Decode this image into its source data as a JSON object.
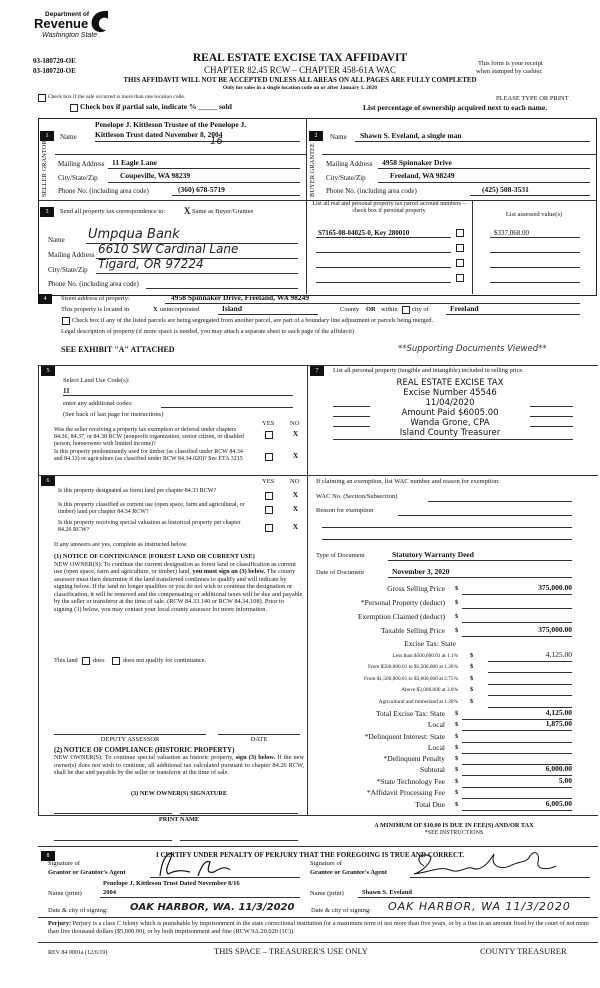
{
  "header": {
    "logo_text": [
      "Department of",
      "Revenue",
      "Washington State"
    ],
    "form_ids": [
      "03-180720-OE",
      "03-180720-OE"
    ],
    "title": "REAL ESTATE EXCISE TAX AFFIDAVIT",
    "subtitle": "CHAPTER 82.45 RCW – CHAPTER 458-61A WAC",
    "warning": "THIS AFFIDAVIT WILL NOT BE ACCEPTED UNLESS ALL AREAS ON ALL PAGES ARE FULLY COMPLETED",
    "only_for": "Only for sales in a single location code on or after January 1, 2020",
    "receipt_note": [
      "This form is your receipt",
      "when stamped by cashier."
    ],
    "multi_location": "Check box if the sale occurred is more than one location code.",
    "partial_sale": "Check box if partial sale, indicate % _____ sold",
    "type_or_print": "PLEASE TYPE OR PRINT",
    "ownership_note": "List percentage of ownership acquired next to each name."
  },
  "seller": {
    "num": "1",
    "side_label": "SELLER GRANTOR",
    "name_label": "Name",
    "name": [
      "Penelope J. Kittleson Trustee of the Penelope J.",
      "Kittleson Trust dated November 8, 2004"
    ],
    "name_hand": "16",
    "mailing_label": "Mailing Address",
    "mailing": "11 Eagle Lane",
    "city_label": "City/State/Zip",
    "city": "Coupeville, WA 98239",
    "phone_label": "Phone No. (including area code)",
    "phone": "(360) 678-5719"
  },
  "buyer": {
    "num": "2",
    "side_label": "BUYER GRANTEE",
    "name_label": "Name",
    "name": "Shawn S. Eveland, a single man",
    "mailing_label": "Mailing Address",
    "mailing": "4958 Spinnaker Drive",
    "city_label": "City/State/Zip",
    "city": "Freeland, WA 98249",
    "phone_label": "Phone No. (including area code)",
    "phone": "(425) 508-3531"
  },
  "correspondence": {
    "num": "3",
    "label": "Send all property tax correspondence to:",
    "same_as": "Same as Buyer/Grantee",
    "same_as_mark": "X",
    "name_label": "Name",
    "name": "Umpqua Bank",
    "mailing_label": "Mailing Address",
    "mailing": "6610 SW Cardinal Lane",
    "city_label": "City/State/Zip",
    "city": "Tigard, OR 97224",
    "phone_label": "Phone No. (including area code)"
  },
  "parcels": {
    "header": "List all real and personal property tax parcel account numbers – check box if personal property",
    "value_header": "List assessed value(s)",
    "rows": [
      {
        "account": "S7165-08-04025-0, Key 280010",
        "value": "$337,068.00"
      },
      {
        "account": "",
        "value": ""
      },
      {
        "account": "",
        "value": ""
      },
      {
        "account": "",
        "value": ""
      }
    ]
  },
  "property": {
    "num": "4",
    "street_label": "Street address of property:",
    "street": "4958 Spinnaker Drive, Freeland, WA  98249",
    "located_label": "This property is located in",
    "located_mark": "X",
    "unincorporated": "unincorporated",
    "county": "Island",
    "county_label": "County",
    "or": "OR",
    "within": "within",
    "city_of": "city of",
    "city": "Freeland",
    "segregated": "Check box if any of the listed parcels are being segregated from another parcel, are part of a boundary line adjustment or parcels being merged.",
    "legal_label": "Legal description of property (if more space is needed, you may attach a separate sheet to each page of the affidavit)",
    "legal": "SEE EXHIBIT \"A\" ATTACHED",
    "supporting": "**Supporting Documents Viewed**"
  },
  "section5": {
    "num": "5",
    "land_use_label": "Select Land Use Code(s):",
    "land_use": "11",
    "additional": "enter any additional codes:",
    "see_back": "(See back of last page for instructions)",
    "yes": "YES",
    "no": "NO",
    "questions": [
      {
        "text": "Was the seller receiving a property tax exemption or deferral under chapters 84.36, 84.37, or 84.38 RCW (nonprofit organization, senior citizen, or disabled person, homeowner with limited income)?",
        "answer": "X"
      },
      {
        "text": "Is this property predominantly used for timber (as classified under RCW 84.34 and 84.33) or agriculture (as classified under RCW 84.34.020)? See ETA 3215",
        "answer": "X"
      }
    ]
  },
  "section6": {
    "num": "6",
    "yes": "YES",
    "no": "NO",
    "questions": [
      {
        "text": "Is this property designated as forest land per chapter 84.33 RCW?",
        "answer": "X"
      },
      {
        "text": "Is this property classified as current use (open space, farm and agricultural, or timber) land per chapter 84.34 RCW?",
        "answer": "X"
      },
      {
        "text": "Is this property receiving special valuation as historical property per chapter 84.26 RCW?",
        "answer": "X"
      }
    ],
    "if_yes": "If any answers are yes, complete as instructed below.",
    "notice1_title": "(1) NOTICE OF CONTINUANCE (FOREST LAND OR CURRENT USE)",
    "notice1_text_a": "NEW OWNER(S): To continue the current designation as forest land or classification as current use (open space, farm and agriculture, or timber) land,",
    "notice1_bold": "you must sign on (3) below.",
    "notice1_text_b": "The county assessor must then determine if the land transferred continues to qualify and will indicate by signing below. If the land no longer qualifies or you do not wish to continue the designation or classification, it will be removed and the compensating or additional taxes will be due and payable by the seller or transferor at the time of sale. (RCW 84.33.140 or RCW 84.34.108). Prior to signing (3) below, you may contact your local county assessor for more information.",
    "this_land": "This land",
    "does": "does",
    "does_not": "does not qualify for continuance.",
    "deputy": "DEPUTY ASSESSOR",
    "date": "DATE",
    "notice2_title": "(2) NOTICE OF COMPLIANCE (HISTORIC PROPERTY)",
    "notice2_text_a": "NEW OWNER(S): To continue special valuation as historic property,",
    "notice2_bold": "sign (3) below.",
    "notice2_text_b": "If the new owner(s) does not wish to continue, all additional tax calculated pursuant to chapter 84.26 RCW, shall be due and payable by the seller or transferor at the time of sale.",
    "signature_title": "(3) NEW OWNER(S) SIGNATURE",
    "print_name": "PRINT NAME"
  },
  "section7": {
    "num": "7",
    "label": "List all personal property (tangible and intangible) included in selling price.",
    "stamp": [
      "REAL ESTATE EXCISE TAX",
      "Excise Number 45546",
      "11/04/2020",
      "Amount Paid $6005.00",
      "Wanda Grone, CPA",
      "Island County Treasurer"
    ]
  },
  "exemption": {
    "label": "If claiming an exemption, list WAC number and reason for exemption:",
    "wac_label": "WAC No. (Section/Subsection)",
    "reason_label": "Reason for exemption"
  },
  "document": {
    "type_label": "Type of Document",
    "type": "Statutory Warranty Deed",
    "date_label": "Date of Document",
    "date": "November 3, 2020"
  },
  "tax": {
    "rows": [
      {
        "label": "Gross Selling Price",
        "value": "375,000.00",
        "bold": true
      },
      {
        "label": "*Personal Property (deduct)",
        "value": ""
      },
      {
        "label": "Exemption Claimed (deduct)",
        "value": ""
      },
      {
        "label": "Taxable Selling Price",
        "value": "375,000.00",
        "bold": true
      },
      {
        "label": "Excise Tax:  State",
        "heading": true
      },
      {
        "label": "Less than $500,000.01 at 1.1%",
        "value": "4,125.00",
        "small": true
      },
      {
        "label": "From $500,000.01 to $1,500,000 at 1.28%",
        "value": "",
        "small": true
      },
      {
        "label": "From $1,500,000.01 to $3,000,000 at 2.75%",
        "value": "",
        "small": true
      },
      {
        "label": "Above $3,000,000 at 3.0%",
        "value": "",
        "small": true
      },
      {
        "label": "Agricultural and timberland at 1.28%",
        "value": "",
        "small": true
      },
      {
        "label": "Total Excise Tax: State",
        "value": "4,125.00",
        "bold": true
      },
      {
        "label": "Local",
        "value": "1,875.00",
        "bold": true
      },
      {
        "label": "*Delinquent Interest: State",
        "value": ""
      },
      {
        "label": "Local",
        "value": ""
      },
      {
        "label": "*Delinquent Penalty",
        "value": ""
      },
      {
        "label": "Subtotal",
        "value": "6,000.00",
        "bold": true
      },
      {
        "label": "*State Technology Fee",
        "value": "5.00",
        "bold": true
      },
      {
        "label": "*Affidavit Processing Fee",
        "value": ""
      },
      {
        "label": "Total Due",
        "value": "6,005.00",
        "bold": true
      }
    ],
    "currency": "$",
    "minimum": "A MINIMUM OF $10.00 IS DUE IN FEE(S) AND/OR TAX",
    "see_instructions": "*SEE INSTRUCTIONS"
  },
  "section8": {
    "num": "8",
    "certify": "I CERTIFY UNDER PENALTY OF PERJURY THAT THE FOREGOING IS TRUE AND CORRECT.",
    "grantor_sig_label": [
      "Signature of",
      "Grantor or Grantor's Agent"
    ],
    "grantee_sig_label": [
      "Signature of",
      "Grantee or Grantee's Agent"
    ],
    "name_print_label": "Name (print)",
    "grantor_name": [
      "Penelope J. Kittleson Trust Dated November 8/16",
      "2004"
    ],
    "grantee_name": "Shawn S. Eveland",
    "date_city_label": "Date & city of signing:",
    "grantor_date_city": "OAK HARBOR, WA. 11/3/2020",
    "grantee_date_city": "OAK HARBOR, WA 11/3/2020"
  },
  "footer": {
    "perjury_label": "Perjury:",
    "perjury": "Perjury is a class C felony which is punishable by imprisonment in the state correctional institution for a maximum term of not more than five years, or by a fine in an amount fixed by the court of not more than five thousand dollars ($5,000.00), or by both imprisonment and fine (RCW 9A.20.020 (1C)).",
    "rev": "REV 84 0001a (12/6/19)",
    "treasurer_use": "THIS SPACE – TREASURER'S USE ONLY",
    "county_treasurer": "COUNTY TREASURER"
  }
}
